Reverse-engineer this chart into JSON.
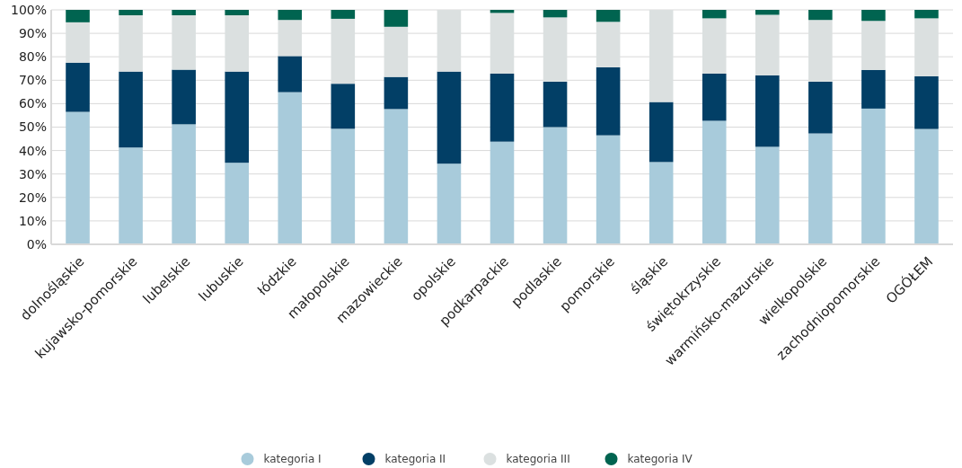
{
  "chart_data": {
    "type": "bar",
    "stacked": true,
    "categories": [
      "dolnośląskie",
      "kujawsko-pomorskie",
      "lubelskie",
      "lubuskie",
      "łódzkie",
      "małopolskie",
      "mazowieckie",
      "opolskie",
      "podkarpackie",
      "podlaskie",
      "pomorskie",
      "śląskie",
      "świętokrzyskie",
      "warmińsko-mazurskie",
      "wielkopolskie",
      "zachodniopomorskie",
      "OGÓŁEM"
    ],
    "series": [
      {
        "name": "kategoria I",
        "color": "#a8cbdb",
        "values": [
          56.5,
          41.3,
          51.2,
          34.8,
          64.9,
          49.3,
          57.7,
          34.4,
          43.8,
          50,
          46.5,
          35.1,
          52.7,
          41.6,
          47.3,
          57.9,
          49.2
        ]
      },
      {
        "name": "kategoria II",
        "color": "#023f66",
        "values": [
          21,
          32.4,
          23.3,
          38.9,
          15.4,
          19.2,
          13.7,
          39.3,
          29,
          19.4,
          29,
          25.6,
          20.1,
          30.5,
          22.1,
          16.5,
          22.5
        ]
      },
      {
        "name": "kategoria III",
        "color": "#dbe0e0",
        "values": [
          17.2,
          24,
          23.2,
          24,
          15.4,
          27.7,
          21.4,
          26.3,
          25.9,
          27.4,
          19.4,
          39.3,
          23.6,
          25.8,
          26.3,
          20.9,
          24.7
        ]
      },
      {
        "name": "kategoria IV",
        "color": "#006450",
        "values": [
          5.3,
          2.3,
          2.3,
          2.3,
          4.3,
          3.8,
          7.2,
          0,
          1.3,
          3.2,
          5.1,
          0,
          3.6,
          2.1,
          4.3,
          4.7,
          3.6
        ]
      }
    ],
    "ylim": [
      0,
      100
    ],
    "yticks": [
      {
        "value": 0,
        "label": "0%"
      },
      {
        "value": 10,
        "label": "10%"
      },
      {
        "value": 20,
        "label": "20%"
      },
      {
        "value": 30,
        "label": "30%"
      },
      {
        "value": 40,
        "label": "40%"
      },
      {
        "value": 50,
        "label": "50%"
      },
      {
        "value": 60,
        "label": "60%"
      },
      {
        "value": 70,
        "label": "70%"
      },
      {
        "value": 80,
        "label": "80%"
      },
      {
        "value": 90,
        "label": "90%"
      },
      {
        "value": 100,
        "label": "100%"
      }
    ],
    "grid": "y",
    "legend": "bottom"
  }
}
